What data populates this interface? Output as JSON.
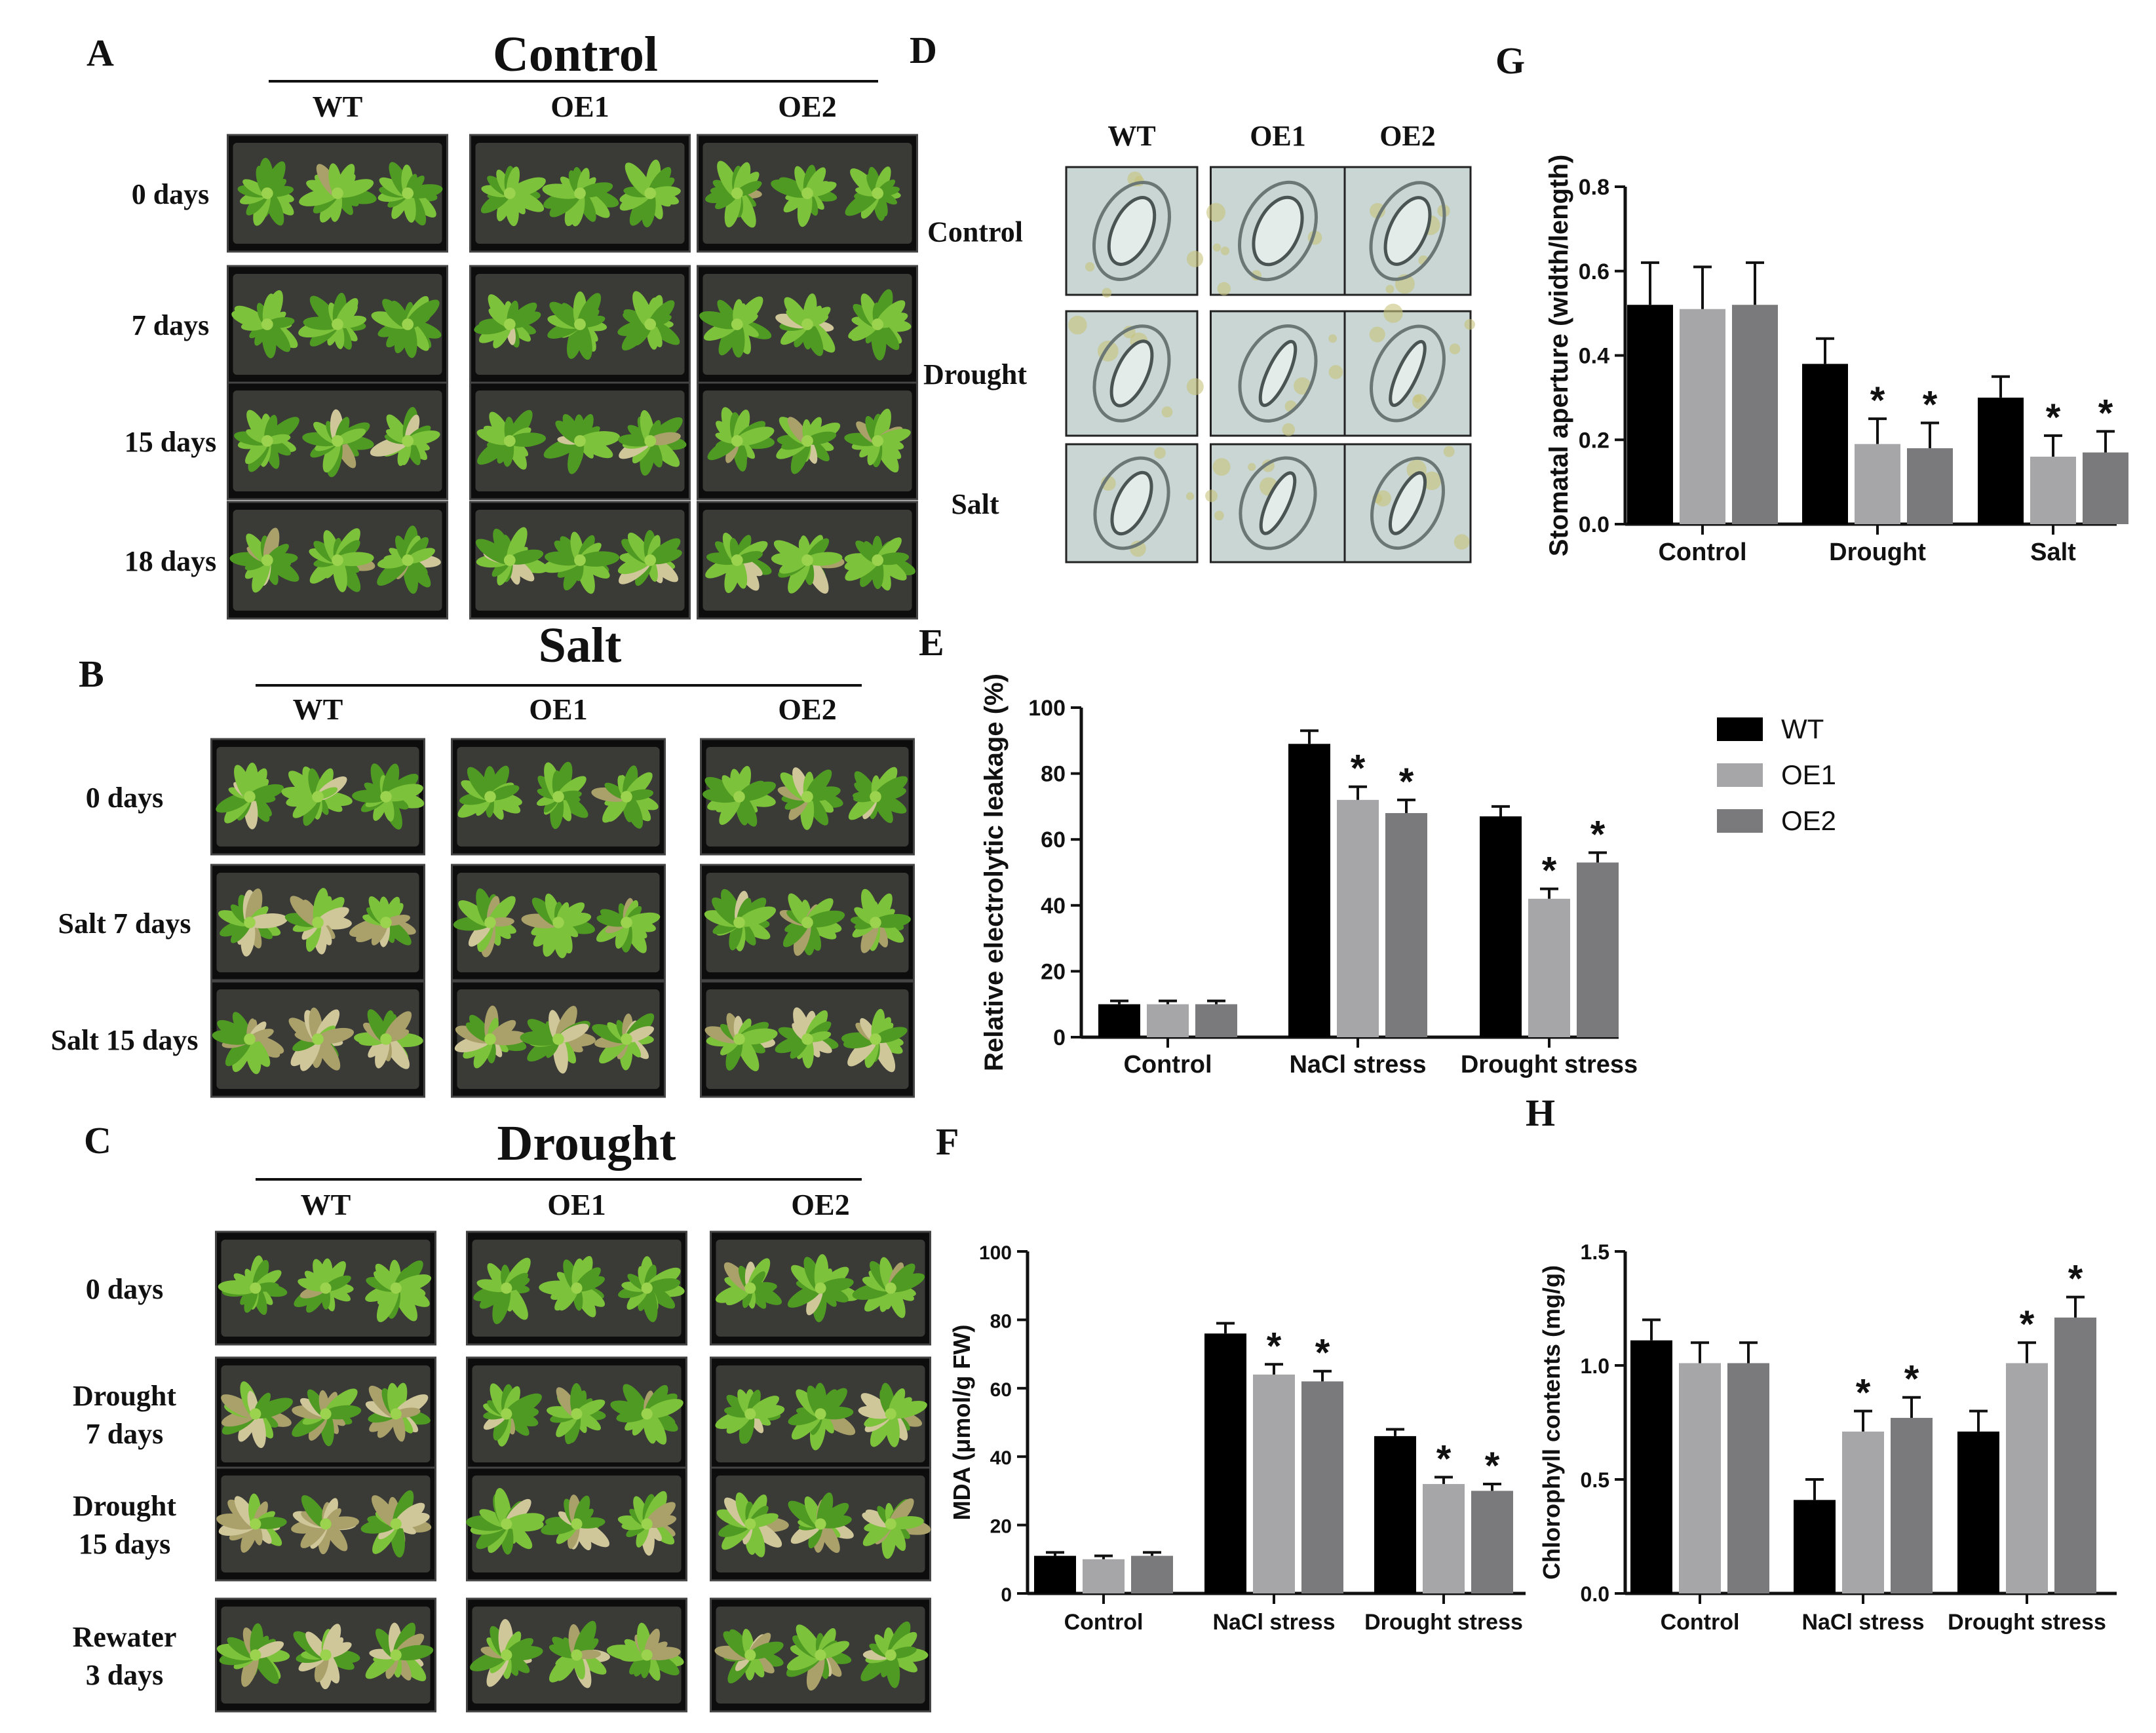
{
  "panels": {
    "A": {
      "letter": "A",
      "title": "Control",
      "columns": [
        "WT",
        "OE1",
        "OE2"
      ],
      "rows": [
        "0 days",
        "7 days",
        "15 days",
        "18 days"
      ]
    },
    "B": {
      "letter": "B",
      "title": "Salt",
      "columns": [
        "WT",
        "OE1",
        "OE2"
      ],
      "rows": [
        "0 days",
        "Salt 7 days",
        "Salt  15 days"
      ]
    },
    "C": {
      "letter": "C",
      "title": "Drought",
      "columns": [
        "WT",
        "OE1",
        "OE2"
      ],
      "rows": [
        [
          "0  days"
        ],
        [
          "Drought",
          "7 days"
        ],
        [
          "Drought",
          "15 days"
        ],
        [
          "Rewater",
          "3 days"
        ]
      ]
    },
    "D": {
      "letter": "D",
      "columns": [
        "WT",
        "OE1",
        "OE2"
      ],
      "rows": [
        "Control",
        "Drought",
        "Salt"
      ]
    },
    "E": {
      "letter": "E"
    },
    "F": {
      "letter": "F"
    },
    "G": {
      "letter": "G"
    },
    "H": {
      "letter": "H"
    }
  },
  "legend": {
    "items": [
      {
        "name": "WT",
        "color": "#000000"
      },
      {
        "name": "OE1",
        "color": "#a6a6a8"
      },
      {
        "name": "OE2",
        "color": "#7a7a7c"
      }
    ]
  },
  "colors": {
    "WT": "#000000",
    "OE1": "#a6a6a8",
    "OE2": "#7a7a7c",
    "plant_dark": "#2d6a14",
    "plant_light": "#8cc63f",
    "stoma_bg": "#c9d6d4"
  },
  "chart_data": [
    {
      "id": "G",
      "type": "bar",
      "ylabel": "Stomatal aperture (width/length)",
      "categories": [
        "Control",
        "Drought",
        "Salt"
      ],
      "ylim": [
        0,
        0.8
      ],
      "yticks": [
        "0.0",
        "0.2",
        "0.4",
        "0.6",
        "0.8"
      ],
      "series": [
        {
          "name": "WT",
          "values": [
            0.52,
            0.38,
            0.3
          ],
          "errors": [
            0.1,
            0.06,
            0.05
          ]
        },
        {
          "name": "OE1",
          "values": [
            0.51,
            0.19,
            0.16
          ],
          "errors": [
            0.1,
            0.06,
            0.05
          ]
        },
        {
          "name": "OE2",
          "values": [
            0.52,
            0.18,
            0.17
          ],
          "errors": [
            0.1,
            0.06,
            0.05
          ]
        }
      ],
      "significant": [
        [
          1,
          1
        ],
        [
          2,
          1
        ],
        [
          1,
          2
        ],
        [
          2,
          2
        ]
      ],
      "annotation": "*"
    },
    {
      "id": "E",
      "type": "bar",
      "ylabel": "Relative electrolytic leakage (%)",
      "categories": [
        "Control",
        "NaCl stress",
        "Drought stress"
      ],
      "ylim": [
        0,
        100
      ],
      "yticks": [
        "0",
        "20",
        "40",
        "60",
        "80",
        "100"
      ],
      "series": [
        {
          "name": "WT",
          "values": [
            10,
            89,
            67
          ],
          "errors": [
            1,
            4,
            3
          ]
        },
        {
          "name": "OE1",
          "values": [
            10,
            72,
            42
          ],
          "errors": [
            1,
            4,
            3
          ]
        },
        {
          "name": "OE2",
          "values": [
            10,
            68,
            53
          ],
          "errors": [
            1,
            4,
            3
          ]
        }
      ],
      "significant": [
        [
          1,
          1
        ],
        [
          2,
          1
        ],
        [
          1,
          2
        ],
        [
          2,
          2
        ]
      ],
      "annotation": "*"
    },
    {
      "id": "F",
      "type": "bar",
      "ylabel": "MDA (μmol/g FW)",
      "categories": [
        "Control",
        "NaCl stress",
        "Drought stress"
      ],
      "ylim": [
        0,
        100
      ],
      "yticks": [
        "0",
        "20",
        "40",
        "60",
        "80",
        "100"
      ],
      "series": [
        {
          "name": "WT",
          "values": [
            11,
            76,
            46
          ],
          "errors": [
            1,
            3,
            2
          ]
        },
        {
          "name": "OE1",
          "values": [
            10,
            64,
            32
          ],
          "errors": [
            1,
            3,
            2
          ]
        },
        {
          "name": "OE2",
          "values": [
            11,
            62,
            30
          ],
          "errors": [
            1,
            3,
            2
          ]
        }
      ],
      "significant": [
        [
          1,
          1
        ],
        [
          2,
          1
        ],
        [
          1,
          2
        ],
        [
          2,
          2
        ]
      ],
      "annotation": "*"
    },
    {
      "id": "H",
      "type": "bar",
      "ylabel": "Chlorophyll contents (mg/g)",
      "categories": [
        "Control",
        "NaCl stress",
        "Drought stress"
      ],
      "ylim": [
        0,
        1.5
      ],
      "yticks": [
        "0.0",
        "0.5",
        "1.0",
        "1.5"
      ],
      "series": [
        {
          "name": "WT",
          "values": [
            1.11,
            0.41,
            0.71
          ],
          "errors": [
            0.09,
            0.09,
            0.09
          ]
        },
        {
          "name": "OE1",
          "values": [
            1.01,
            0.71,
            1.01
          ],
          "errors": [
            0.09,
            0.09,
            0.09
          ]
        },
        {
          "name": "OE2",
          "values": [
            1.01,
            0.77,
            1.21
          ],
          "errors": [
            0.09,
            0.09,
            0.09
          ]
        }
      ],
      "significant": [
        [
          1,
          1
        ],
        [
          2,
          1
        ],
        [
          1,
          2
        ],
        [
          2,
          2
        ]
      ],
      "annotation": "*"
    }
  ]
}
